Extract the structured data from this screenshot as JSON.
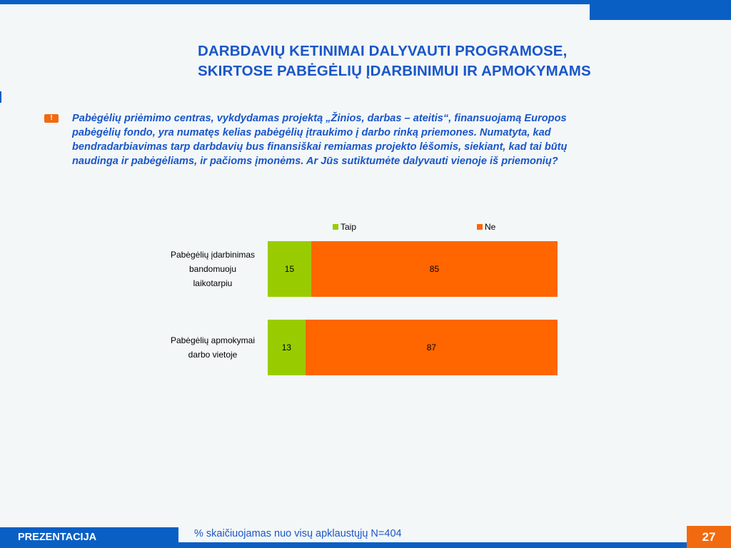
{
  "slide": {
    "title_lines": [
      "DARBDAVIŲ KETINIMAI DALYVAUTI PROGRAMOSE,",
      "SKIRTOSE PABĖGĖLIŲ ĮDARBINIMUI IR APMOKYMAMS"
    ],
    "question_lines": [
      "Pabėgėlių priėmimo centras, vykdydamas projektą „Žinios, darbas – ateitis“, finansuojamą Europos",
      "pabėgėlių fondo, yra numatęs kelias pabėgėlių įtraukimo į darbo rinką priemones. Numatyta, kad",
      "bendradarbiavimas tarp darbdavių bus finansiškai remiamas projekto lėšomis, siekiant, kad tai būtų",
      "naudinga ir pabėgėliams, ir pačioms įmonėms.  Ar Jūs sutiktumėte dalyvauti vienoje iš priemonių?"
    ],
    "icon_glyph": "!"
  },
  "footer": {
    "label": "PREZENTACIJA",
    "note": "% skaičiuojamas nuo visų apklaustųjų N=404",
    "page_number": "27"
  },
  "colors": {
    "brand_blue": "#0a5fc4",
    "taip": "#99cc00",
    "ne": "#ff6600"
  },
  "chart_data": {
    "type": "bar",
    "orientation": "horizontal",
    "stacked": true,
    "xlim": [
      0,
      100
    ],
    "grid": false,
    "legend_position": "top",
    "categories": [
      [
        "Pabėgėlių įdarbinimas",
        "bandomuoju",
        "laikotarpiu"
      ],
      [
        "Pabėgėlių apmokymai",
        "darbo vietoje"
      ]
    ],
    "series": [
      {
        "name": "Taip",
        "values": [
          15,
          13
        ],
        "color": "#99cc00"
      },
      {
        "name": "Ne",
        "values": [
          85,
          87
        ],
        "color": "#ff6600"
      }
    ]
  }
}
